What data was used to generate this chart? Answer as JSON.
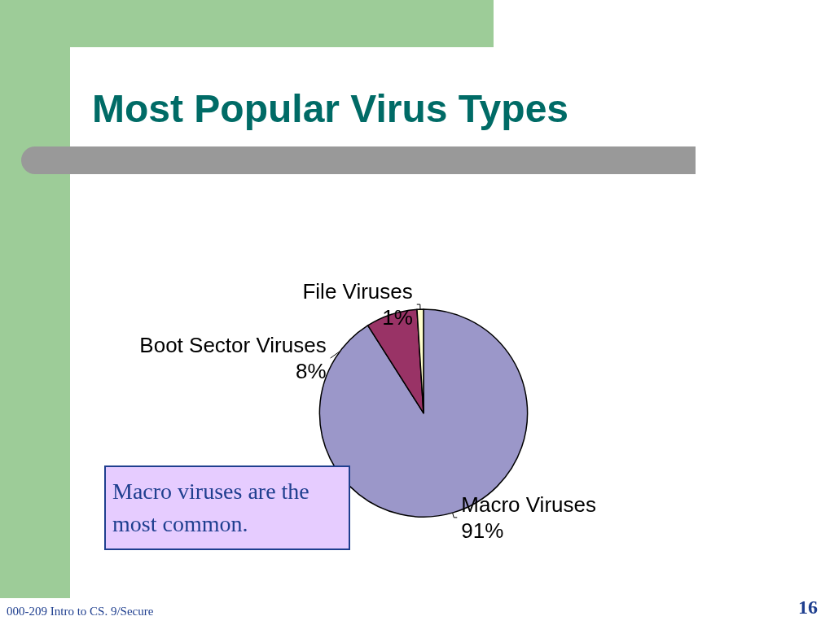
{
  "chart_data": {
    "type": "pie",
    "title": "Most Popular Virus Types",
    "categories": [
      "Macro Viruses",
      "Boot Sector Viruses",
      "File Viruses"
    ],
    "values": [
      91,
      8,
      1
    ],
    "value_labels": [
      "91%",
      "8%",
      "1%"
    ],
    "colors": [
      "#9b97c9",
      "#993366",
      "#ffffcc"
    ],
    "annotations": [
      "Macro viruses are the most common.",
      "000-209 Intro to CS. 9/Secure",
      "16"
    ],
    "legend": false
  }
}
